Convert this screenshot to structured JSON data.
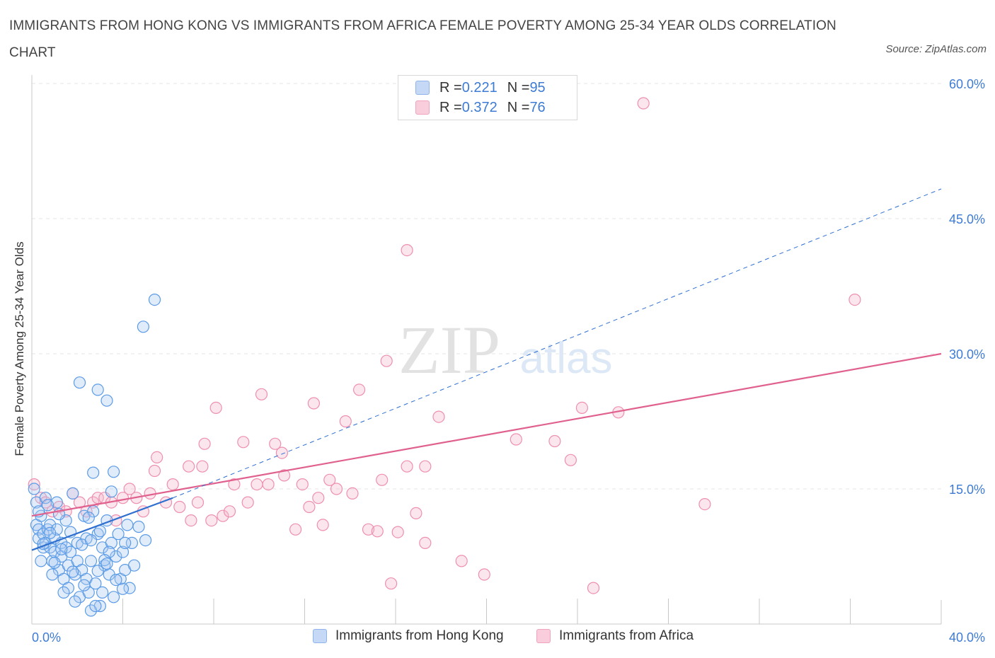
{
  "title": "IMMIGRANTS FROM HONG KONG VS IMMIGRANTS FROM AFRICA FEMALE POVERTY AMONG 25-34 YEAR OLDS CORRELATION CHART",
  "source": "Source: ZipAtlas.com",
  "watermark": {
    "zip": "ZIP",
    "atlas": "atlas"
  },
  "legend": {
    "rows": [
      {
        "r_label": "R = ",
        "r_value": "0.221",
        "n_label": "N = ",
        "n_value": "95"
      },
      {
        "r_label": "R = ",
        "r_value": "0.372",
        "n_label": "N = ",
        "n_value": "76"
      }
    ]
  },
  "chart_data": {
    "type": "scatter",
    "xlabel": "",
    "ylabel": "Female Poverty Among 25-34 Year Olds",
    "xlim": [
      0,
      40
    ],
    "ylim": [
      0,
      60
    ],
    "x_tick_labels": [
      "0.0%",
      "40.0%"
    ],
    "y_ticks": [
      15,
      30,
      45,
      60
    ],
    "y_tick_labels": [
      "15.0%",
      "30.0%",
      "45.0%",
      "60.0%"
    ],
    "grid": true,
    "colors": {
      "hong_kong": "#5b9be6",
      "africa": "#ee8fb0",
      "hk_line": "#2f6fd0",
      "af_line": "#e0608e",
      "tick_text": "#3d7bd4"
    },
    "series": [
      {
        "name": "Immigrants from Hong Kong",
        "R": 0.221,
        "N": 95,
        "trend_solid": [
          [
            0,
            8.2
          ],
          [
            6.2,
            14.0
          ]
        ],
        "trend_dashed": [
          [
            6.2,
            14.0
          ],
          [
            40,
            48.3
          ]
        ],
        "points": [
          [
            0.1,
            15.0
          ],
          [
            0.2,
            13.5
          ],
          [
            0.2,
            11.0
          ],
          [
            0.3,
            10.5
          ],
          [
            0.3,
            9.5
          ],
          [
            0.4,
            12.0
          ],
          [
            0.5,
            10.0
          ],
          [
            0.5,
            8.5
          ],
          [
            0.6,
            14.0
          ],
          [
            0.6,
            9.0
          ],
          [
            0.7,
            10.5
          ],
          [
            0.8,
            8.5
          ],
          [
            0.8,
            11.0
          ],
          [
            0.9,
            7.0
          ],
          [
            1.0,
            9.5
          ],
          [
            1.0,
            8.0
          ],
          [
            1.1,
            13.5
          ],
          [
            1.1,
            10.5
          ],
          [
            1.2,
            6.0
          ],
          [
            1.3,
            9.0
          ],
          [
            1.3,
            7.5
          ],
          [
            1.4,
            5.0
          ],
          [
            1.5,
            8.5
          ],
          [
            1.5,
            11.5
          ],
          [
            1.6,
            4.0
          ],
          [
            1.6,
            6.5
          ],
          [
            1.7,
            8.0
          ],
          [
            1.8,
            14.5
          ],
          [
            1.9,
            5.5
          ],
          [
            2.0,
            9.0
          ],
          [
            2.0,
            7.0
          ],
          [
            2.1,
            3.0
          ],
          [
            2.2,
            6.0
          ],
          [
            2.3,
            12.0
          ],
          [
            2.4,
            5.0
          ],
          [
            2.4,
            9.5
          ],
          [
            2.5,
            3.5
          ],
          [
            2.6,
            7.0
          ],
          [
            2.7,
            12.5
          ],
          [
            2.8,
            4.5
          ],
          [
            2.9,
            10.0
          ],
          [
            3.0,
            2.0
          ],
          [
            3.1,
            8.5
          ],
          [
            3.2,
            6.5
          ],
          [
            3.3,
            11.5
          ],
          [
            3.4,
            5.5
          ],
          [
            3.5,
            9.0
          ],
          [
            3.6,
            3.0
          ],
          [
            3.7,
            7.5
          ],
          [
            3.8,
            10.0
          ],
          [
            3.9,
            5.0
          ],
          [
            4.0,
            8.0
          ],
          [
            4.1,
            6.0
          ],
          [
            4.2,
            11.0
          ],
          [
            4.3,
            4.0
          ],
          [
            4.4,
            9.0
          ],
          [
            2.1,
            26.8
          ],
          [
            2.9,
            26.0
          ],
          [
            3.3,
            24.8
          ],
          [
            4.9,
            33.0
          ],
          [
            5.4,
            36.0
          ],
          [
            2.7,
            16.8
          ],
          [
            3.6,
            16.9
          ],
          [
            3.5,
            14.7
          ],
          [
            0.4,
            7.0
          ],
          [
            0.9,
            5.5
          ],
          [
            1.4,
            3.5
          ],
          [
            1.9,
            2.5
          ],
          [
            2.6,
            1.5
          ],
          [
            2.8,
            2.0
          ],
          [
            3.1,
            3.5
          ],
          [
            3.4,
            8.0
          ],
          [
            4.1,
            9.0
          ],
          [
            4.5,
            6.5
          ],
          [
            4.7,
            10.8
          ],
          [
            5.0,
            9.3
          ],
          [
            0.3,
            12.5
          ],
          [
            0.7,
            13.2
          ],
          [
            1.2,
            12.2
          ],
          [
            1.7,
            10.2
          ],
          [
            2.2,
            8.8
          ],
          [
            2.5,
            11.8
          ],
          [
            3.0,
            10.3
          ],
          [
            3.2,
            7.1
          ],
          [
            0.5,
            8.9
          ],
          [
            0.8,
            10.1
          ],
          [
            1.0,
            6.8
          ],
          [
            1.3,
            8.3
          ],
          [
            1.8,
            5.8
          ],
          [
            2.3,
            4.3
          ],
          [
            2.6,
            9.3
          ],
          [
            2.9,
            5.9
          ],
          [
            3.3,
            6.7
          ],
          [
            3.7,
            4.9
          ],
          [
            4.0,
            3.9
          ]
        ]
      },
      {
        "name": "Immigrants from Africa",
        "R": 0.372,
        "N": 76,
        "trend_solid": [
          [
            0,
            12.0
          ],
          [
            40,
            30.0
          ]
        ],
        "points": [
          [
            0.1,
            15.5
          ],
          [
            0.4,
            14.0
          ],
          [
            0.6,
            13.5
          ],
          [
            0.9,
            12.5
          ],
          [
            1.2,
            13.0
          ],
          [
            1.5,
            12.5
          ],
          [
            1.8,
            14.5
          ],
          [
            2.1,
            13.5
          ],
          [
            2.4,
            12.5
          ],
          [
            2.7,
            13.5
          ],
          [
            2.9,
            14.0
          ],
          [
            3.2,
            14.0
          ],
          [
            3.5,
            13.5
          ],
          [
            3.7,
            11.5
          ],
          [
            4.0,
            14.0
          ],
          [
            4.3,
            15.0
          ],
          [
            4.6,
            14.0
          ],
          [
            4.9,
            12.5
          ],
          [
            5.2,
            14.5
          ],
          [
            5.4,
            17.0
          ],
          [
            5.5,
            18.5
          ],
          [
            5.9,
            13.5
          ],
          [
            6.2,
            15.5
          ],
          [
            6.5,
            13.0
          ],
          [
            6.9,
            17.5
          ],
          [
            7.0,
            11.5
          ],
          [
            7.3,
            13.5
          ],
          [
            7.6,
            20.0
          ],
          [
            7.9,
            11.5
          ],
          [
            8.1,
            24.0
          ],
          [
            8.4,
            12.0
          ],
          [
            8.7,
            12.5
          ],
          [
            8.9,
            15.5
          ],
          [
            9.3,
            20.2
          ],
          [
            9.5,
            13.5
          ],
          [
            9.9,
            15.5
          ],
          [
            10.1,
            25.5
          ],
          [
            10.4,
            15.5
          ],
          [
            10.7,
            20.0
          ],
          [
            11.0,
            19.0
          ],
          [
            11.1,
            16.5
          ],
          [
            11.6,
            10.5
          ],
          [
            11.9,
            15.5
          ],
          [
            12.2,
            13.0
          ],
          [
            12.4,
            24.5
          ],
          [
            12.6,
            14.0
          ],
          [
            12.8,
            11.0
          ],
          [
            13.1,
            16.0
          ],
          [
            13.4,
            15.0
          ],
          [
            13.8,
            22.5
          ],
          [
            14.1,
            14.5
          ],
          [
            14.4,
            26.0
          ],
          [
            14.8,
            10.5
          ],
          [
            15.2,
            10.3
          ],
          [
            15.4,
            16.0
          ],
          [
            15.6,
            29.2
          ],
          [
            15.8,
            4.5
          ],
          [
            16.1,
            10.2
          ],
          [
            16.5,
            17.5
          ],
          [
            16.5,
            41.5
          ],
          [
            16.9,
            12.3
          ],
          [
            17.3,
            17.5
          ],
          [
            17.3,
            9.0
          ],
          [
            17.9,
            23.0
          ],
          [
            18.9,
            7.0
          ],
          [
            19.9,
            5.5
          ],
          [
            21.3,
            20.5
          ],
          [
            23.0,
            20.3
          ],
          [
            23.7,
            18.2
          ],
          [
            24.2,
            24.0
          ],
          [
            24.7,
            4.0
          ],
          [
            25.8,
            23.5
          ],
          [
            26.9,
            57.8
          ],
          [
            29.6,
            13.3
          ],
          [
            36.2,
            36.0
          ],
          [
            7.5,
            17.5
          ]
        ]
      }
    ]
  },
  "bottom_legend": {
    "hk_label": "Immigrants from Hong Kong",
    "af_label": "Immigrants from Africa"
  }
}
